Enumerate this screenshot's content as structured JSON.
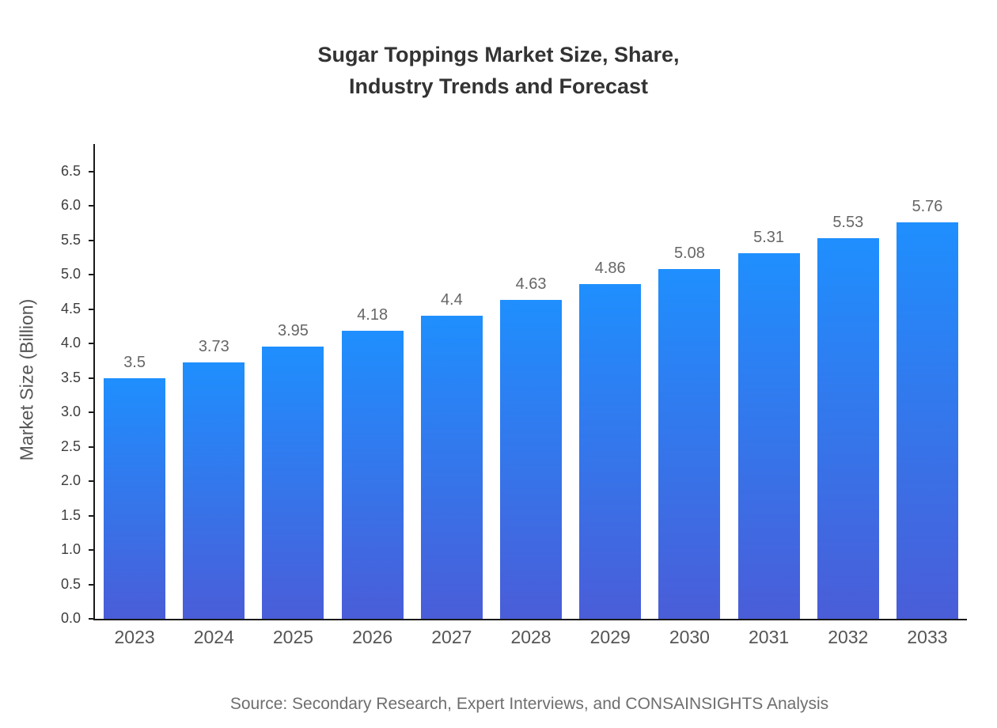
{
  "title": "Sugar Toppings Market Size, Share,\nIndustry Trends and Forecast",
  "source": "Source: Secondary Research, Expert Interviews, and CONSAINSIGHTS Analysis",
  "chart_data": {
    "type": "bar",
    "title": "Sugar Toppings Market Size, Share, Industry Trends and Forecast",
    "categories": [
      "2023",
      "2024",
      "2025",
      "2026",
      "2027",
      "2028",
      "2029",
      "2030",
      "2031",
      "2032",
      "2033"
    ],
    "values": [
      3.5,
      3.73,
      3.95,
      4.18,
      4.4,
      4.63,
      4.86,
      5.08,
      5.31,
      5.53,
      5.76
    ],
    "xlabel": "",
    "ylabel": "Market Size (Billion)",
    "ylim": [
      0,
      6.9
    ],
    "yticks": [
      "0.0",
      "0.5",
      "1.0",
      "1.5",
      "2.0",
      "2.5",
      "3.0",
      "3.5",
      "4.0",
      "4.5",
      "5.0",
      "5.5",
      "6.0",
      "6.5"
    ],
    "grid": false,
    "legend": null,
    "bar_gradient": {
      "top": "#1f8ffe",
      "bottom": "#4a5dd8"
    },
    "axis_color": "#1a1a1a"
  }
}
